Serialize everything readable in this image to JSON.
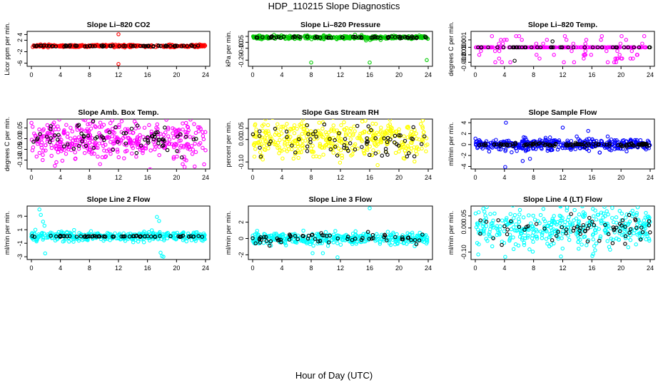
{
  "figure": {
    "title": "HDP_110215  Slope Diagnostics",
    "xlabel": "Hour of Day (UTC)"
  },
  "chart_data": [
    {
      "type": "scatter",
      "title": "Slope Li–820 CO2",
      "ylabel": "Licor ppm per min.",
      "color": "#ff0000",
      "xlim": [
        0,
        24
      ],
      "xticks": [
        "0",
        "4",
        "8",
        "12",
        "16",
        "20",
        "24"
      ],
      "ylim": [
        -6.6,
        4.6
      ],
      "yticks": [
        -6,
        -2,
        2,
        4
      ],
      "ytick_labels": [
        "-6",
        "-2",
        "2",
        "4"
      ],
      "base": 0.0,
      "spread": 0.2,
      "black_spread": 0.12,
      "black_count": 70,
      "count": 380,
      "outliers": [
        [
          12,
          4.1
        ],
        [
          12,
          -6.3
        ]
      ]
    },
    {
      "type": "scatter",
      "title": "Slope Li–820 Pressure",
      "ylabel": "kPa per min.",
      "color": "#00cc00",
      "xlim": [
        0,
        24
      ],
      "xticks": [
        "0",
        "4",
        "8",
        "12",
        "16",
        "20",
        "24"
      ],
      "ylim": [
        -0.24,
        0.03
      ],
      "yticks": [
        -0.2,
        -0.1,
        -0.05,
        0.0
      ],
      "ytick_labels": [
        "-0.20",
        "-0.10",
        "-0.05",
        ""
      ],
      "base": -0.008,
      "spread": 0.007,
      "black_spread": 0.004,
      "black_count": 60,
      "count": 380,
      "outliers": [
        [
          8,
          -0.22
        ],
        [
          16,
          -0.22
        ],
        [
          23.8,
          -0.2
        ],
        [
          15.5,
          -0.035
        ],
        [
          17.5,
          -0.03
        ]
      ]
    },
    {
      "type": "scatter",
      "title": "Slope Li–820 Temp.",
      "ylabel": "degrees C per min.",
      "color": "#ff00ff",
      "xlim": [
        0,
        24
      ],
      "xticks": [
        "0",
        "4",
        "8",
        "12",
        "16",
        "20",
        "24"
      ],
      "ylim": [
        -0.00235,
        0.00195
      ],
      "yticks": [
        -0.002,
        -0.001,
        0.0,
        0.001
      ],
      "ytick_labels": [
        "-0.002",
        "-0.001",
        "0.000",
        "0.001"
      ],
      "base": 0.0,
      "spread": 0.0,
      "black_spread": 0.0,
      "black_count": 40,
      "count": 200,
      "levels": [
        -0.002,
        -0.0015,
        -0.001,
        -0.0005,
        0.0005,
        0.001,
        0.0015
      ],
      "outliers": []
    },
    {
      "type": "scatter",
      "title": "Slope Amb. Box Temp.",
      "ylabel": "degrees C per min.",
      "color": "#ff00ff",
      "xlim": [
        0,
        24
      ],
      "xticks": [
        "0",
        "4",
        "8",
        "12",
        "16",
        "20",
        "24"
      ],
      "ylim": [
        -0.135,
        0.085
      ],
      "yticks": [
        -0.1,
        -0.05,
        0.0,
        0.05
      ],
      "ytick_labels": [
        "-0.10",
        "-0.05",
        "0.00",
        "0.05"
      ],
      "base": 0.0,
      "spread": 0.045,
      "black_spread": 0.035,
      "black_count": 70,
      "count": 420,
      "outliers": [
        [
          22.5,
          -0.13
        ],
        [
          23.8,
          -0.12
        ]
      ]
    },
    {
      "type": "scatter",
      "title": "Slope Gas Stream RH",
      "ylabel": "percent per min.",
      "color": "#ffff00",
      "xlim": [
        0,
        24
      ],
      "xticks": [
        "0",
        "4",
        "8",
        "12",
        "16",
        "20",
        "24"
      ],
      "ylim": [
        -0.125,
        0.085
      ],
      "yticks": [
        -0.1,
        0.0,
        0.05
      ],
      "ytick_labels": [
        "-0.10",
        "0.00",
        "0.05"
      ],
      "base": 0.0,
      "spread": 0.045,
      "black_spread": 0.04,
      "black_count": 70,
      "count": 420,
      "outliers": []
    },
    {
      "type": "scatter",
      "title": "Slope Sample Flow",
      "ylabel": "ml/min per min.",
      "color": "#0000ff",
      "xlim": [
        0,
        24
      ],
      "xticks": [
        "0",
        "4",
        "8",
        "12",
        "16",
        "20",
        "24"
      ],
      "ylim": [
        -4.2,
        4.4
      ],
      "yticks": [
        -4,
        -2,
        0,
        2,
        4
      ],
      "ytick_labels": [
        "-4",
        "-2",
        "0",
        "2",
        "4"
      ],
      "base": 0.0,
      "spread": 0.5,
      "black_spread": 0.18,
      "black_count": 110,
      "count": 420,
      "outliers": [
        [
          4.2,
          4.0
        ],
        [
          4.1,
          -4.1
        ],
        [
          12,
          3.1
        ],
        [
          15.5,
          2.5
        ],
        [
          7.5,
          -2.6
        ],
        [
          6.5,
          -3.0
        ]
      ]
    },
    {
      "type": "scatter",
      "title": "Slope Line 2 Flow",
      "ylabel": "ml/min per min.",
      "color": "#00ffff",
      "xlim": [
        0,
        24
      ],
      "xticks": [
        "0",
        "4",
        "8",
        "12",
        "16",
        "20",
        "24"
      ],
      "ylim": [
        -3.2,
        4.3
      ],
      "yticks": [
        -3,
        -1,
        1,
        3
      ],
      "ytick_labels": [
        "-3",
        "-1",
        "1",
        "3"
      ],
      "base": 0.0,
      "spread": 0.35,
      "black_spread": 0.05,
      "black_count": 65,
      "count": 380,
      "outliers": [
        [
          1.1,
          4.0
        ],
        [
          1.3,
          3.2
        ],
        [
          1.6,
          2.2
        ],
        [
          1.8,
          1.6
        ],
        [
          1.9,
          -2.5
        ],
        [
          17.3,
          2.9
        ],
        [
          17.6,
          2.3
        ],
        [
          17.8,
          -2.4
        ],
        [
          18.0,
          -2.9
        ],
        [
          18.2,
          -3.0
        ]
      ]
    },
    {
      "type": "scatter",
      "title": "Slope Line 3 Flow",
      "ylabel": "ml/min per min.",
      "color": "#00ffff",
      "xlim": [
        0,
        24
      ],
      "xticks": [
        "0",
        "4",
        "8",
        "12",
        "16",
        "20",
        "24"
      ],
      "ylim": [
        -2.4,
        3.8
      ],
      "yticks": [
        -2,
        0,
        2
      ],
      "ytick_labels": [
        "-2",
        "0",
        "2"
      ],
      "base": 0.0,
      "spread": 0.35,
      "black_spread": 0.3,
      "black_count": 65,
      "count": 380,
      "outliers": [
        [
          16,
          3.7
        ],
        [
          11.6,
          -2.3
        ],
        [
          9.6,
          -1.8
        ],
        [
          8.2,
          -1.8
        ]
      ]
    },
    {
      "type": "scatter",
      "title": "Slope Line 4 (LT) Flow",
      "ylabel": "ml/min per min.",
      "color": "#00ffff",
      "xlim": [
        0,
        24
      ],
      "xticks": [
        "0",
        "4",
        "8",
        "12",
        "16",
        "20",
        "24"
      ],
      "ylim": [
        -0.125,
        0.085
      ],
      "yticks": [
        -0.1,
        0.0,
        0.05
      ],
      "ytick_labels": [
        "-0.10",
        "0.00",
        "0.05"
      ],
      "base": 0.0,
      "spread": 0.04,
      "black_spread": 0.03,
      "black_count": 65,
      "count": 400,
      "outliers": [
        [
          1.1,
          0.08
        ],
        [
          0.4,
          -0.11
        ],
        [
          4.1,
          -0.12
        ],
        [
          18.5,
          -0.09
        ]
      ]
    }
  ]
}
